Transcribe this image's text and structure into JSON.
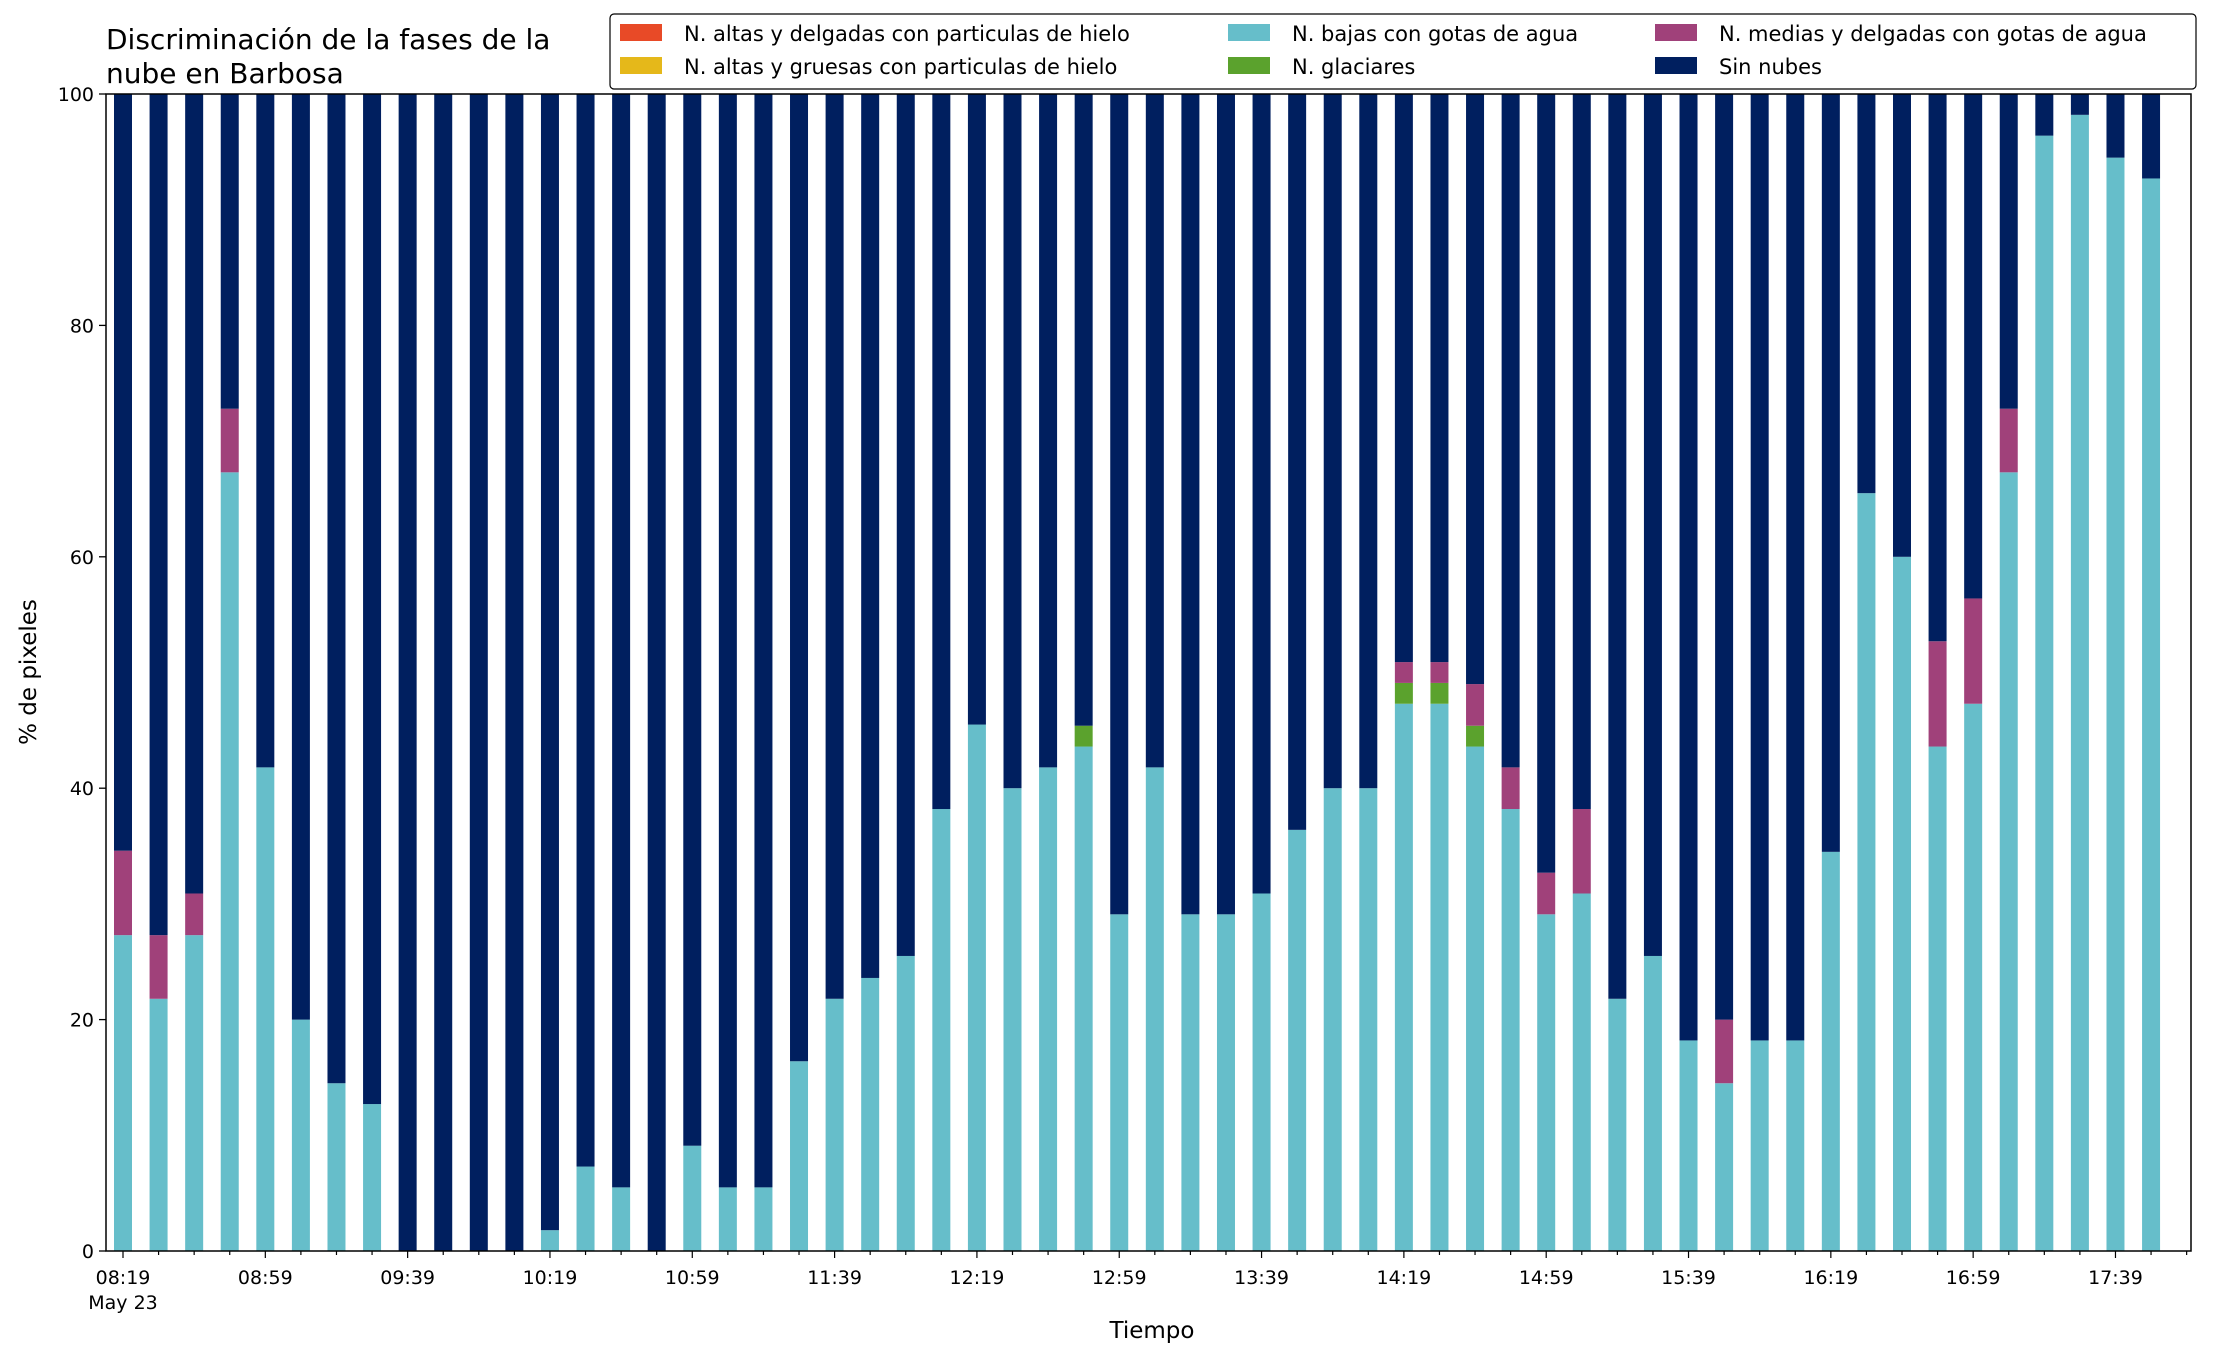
{
  "chart_data": {
    "type": "bar",
    "stacked": true,
    "title_lines": [
      "Discriminación de la fases de la",
      "nube en Barbosa"
    ],
    "xlabel": "Tiempo",
    "ylabel": "% de pixeles",
    "ylim": [
      0,
      100
    ],
    "yticks": [
      0,
      20,
      40,
      60,
      80,
      100
    ],
    "x_tick_labels": [
      "08:19",
      "08:59",
      "09:39",
      "10:19",
      "10:59",
      "11:39",
      "12:19",
      "12:59",
      "13:39",
      "14:19",
      "14:59",
      "15:39",
      "16:19",
      "16:59",
      "17:39"
    ],
    "x_tick_sublabel": "May 23",
    "legend_position": "top-right",
    "legend": [
      {
        "name": "N. altas y delgadas con particulas de hielo",
        "color": "#E84A27"
      },
      {
        "name": "N. altas y gruesas con particulas de hielo",
        "color": "#E5B81A"
      },
      {
        "name": "N. bajas con gotas de agua",
        "color": "#66BECA"
      },
      {
        "name": "N. glaciares",
        "color": "#5BA22D"
      },
      {
        "name": "N. medias y delgadas con gotas de agua",
        "color": "#A0417A"
      },
      {
        "name": "Sin nubes",
        "color": "#001F5F"
      }
    ],
    "series_values": {
      "bajas": [
        27.3,
        21.8,
        27.3,
        67.3,
        41.8,
        20.0,
        14.5,
        12.7,
        0,
        0,
        0,
        0,
        1.8,
        7.3,
        5.5,
        0,
        9.1,
        5.5,
        5.5,
        16.4,
        21.8,
        23.6,
        25.5,
        38.2,
        45.5,
        40.0,
        41.8,
        43.6,
        29.1,
        41.8,
        29.1,
        29.1,
        30.9,
        36.4,
        40.0,
        40.0,
        47.3,
        47.3,
        43.6,
        38.2,
        29.1,
        30.9,
        21.8,
        25.5,
        18.2,
        14.5,
        18.2,
        18.2,
        34.5,
        65.5,
        60.0,
        43.6,
        47.3,
        67.3,
        96.4,
        98.2,
        94.5,
        92.7
      ],
      "glaciares": [
        0,
        0,
        0,
        0,
        0,
        0,
        0,
        0,
        0,
        0,
        0,
        0,
        0,
        0,
        0,
        0,
        0,
        0,
        0,
        0,
        0,
        0,
        0,
        0,
        0,
        0,
        0,
        1.8,
        0,
        0,
        0,
        0,
        0,
        0,
        0,
        0,
        1.8,
        1.8,
        1.8,
        0,
        0,
        0,
        0,
        0,
        0,
        0,
        0,
        0,
        0,
        0,
        0,
        0,
        0,
        0,
        0,
        0,
        0,
        0
      ],
      "medias": [
        7.3,
        5.5,
        3.6,
        5.5,
        0,
        0,
        0,
        0,
        0,
        0,
        0,
        0,
        0,
        0,
        0,
        0,
        0,
        0,
        0,
        0,
        0,
        0,
        0,
        0,
        0,
        0,
        0,
        0,
        0,
        0,
        0,
        0,
        0,
        0,
        0,
        0,
        1.8,
        1.8,
        3.6,
        3.6,
        3.6,
        7.3,
        0,
        0,
        0,
        5.5,
        0,
        0,
        0,
        0,
        0,
        9.1,
        9.1,
        5.5,
        0,
        0,
        0,
        0
      ],
      "altas_delgadas": [
        0,
        0,
        0,
        0,
        0,
        0,
        0,
        0,
        0,
        0,
        0,
        0,
        0,
        0,
        0,
        0,
        0,
        0,
        0,
        0,
        0,
        0,
        0,
        0,
        0,
        0,
        0,
        0,
        0,
        0,
        0,
        0,
        0,
        0,
        0,
        0,
        0,
        0,
        0,
        0,
        0,
        0,
        0,
        0,
        0,
        0,
        0,
        0,
        0,
        0,
        0,
        0,
        0,
        0,
        0,
        0,
        0,
        0
      ],
      "altas_gruesas": [
        0,
        0,
        0,
        0,
        0,
        0,
        0,
        0,
        0,
        0,
        0,
        0,
        0,
        0,
        0,
        0,
        0,
        0,
        0,
        0,
        0,
        0,
        0,
        0,
        0,
        0,
        0,
        0,
        0,
        0,
        0,
        0,
        0,
        0,
        0,
        0,
        0,
        0,
        0,
        0,
        0,
        0,
        0,
        0,
        0,
        0,
        0,
        0,
        0,
        0,
        0,
        0,
        0,
        0,
        0,
        0,
        0,
        0
      ]
    },
    "stack_order": [
      "bajas",
      "glaciares",
      "medias",
      "altas_delgadas",
      "altas_gruesas"
    ],
    "stack_colors": {
      "bajas": "#66BECA",
      "glaciares": "#5BA22D",
      "medias": "#A0417A",
      "altas_delgadas": "#E84A27",
      "altas_gruesas": "#E5B81A",
      "sin_nubes": "#001F5F"
    }
  }
}
